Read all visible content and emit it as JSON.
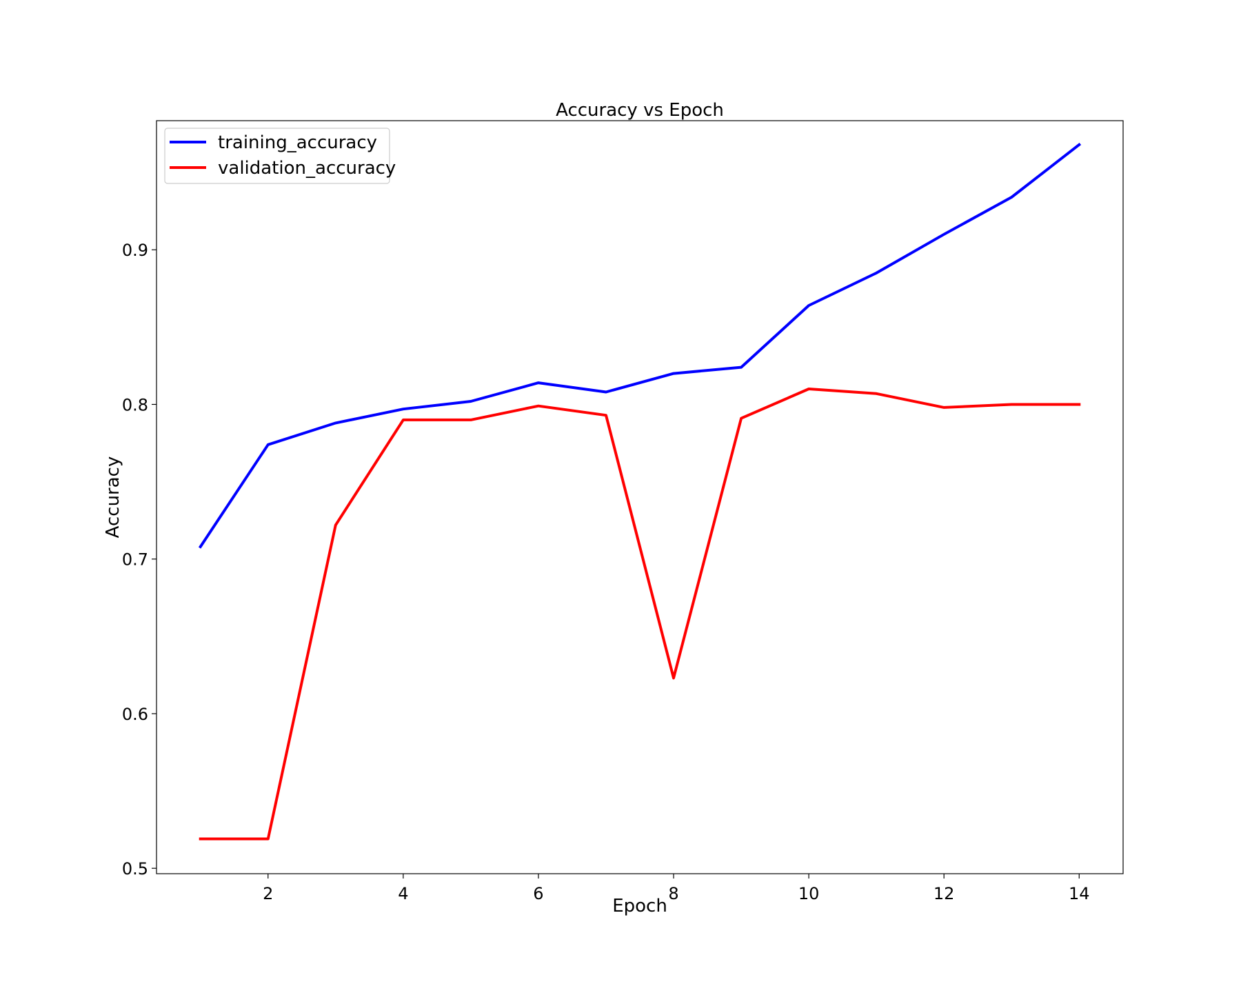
{
  "chart_data": {
    "type": "line",
    "title": "Accuracy vs Epoch",
    "xlabel": "Epoch",
    "ylabel": "Accuracy",
    "x": [
      1,
      2,
      3,
      4,
      5,
      6,
      7,
      8,
      9,
      10,
      11,
      12,
      13,
      14
    ],
    "series": [
      {
        "name": "training_accuracy",
        "color": "#0000ff",
        "values": [
          0.708,
          0.774,
          0.788,
          0.797,
          0.802,
          0.814,
          0.808,
          0.82,
          0.824,
          0.864,
          0.885,
          0.91,
          0.934,
          0.968
        ]
      },
      {
        "name": "validation_accuracy",
        "color": "#ff0000",
        "values": [
          0.519,
          0.519,
          0.722,
          0.79,
          0.79,
          0.799,
          0.793,
          0.623,
          0.791,
          0.81,
          0.807,
          0.798,
          0.8,
          0.8
        ]
      }
    ],
    "xticks": [
      2,
      4,
      6,
      8,
      10,
      12,
      14
    ],
    "yticks": [
      0.5,
      0.6,
      0.7,
      0.8,
      0.9
    ],
    "xlim": [
      0.35,
      14.65
    ],
    "ylim": [
      0.4965,
      0.9835
    ],
    "grid": false,
    "legend_position": "top-left"
  }
}
